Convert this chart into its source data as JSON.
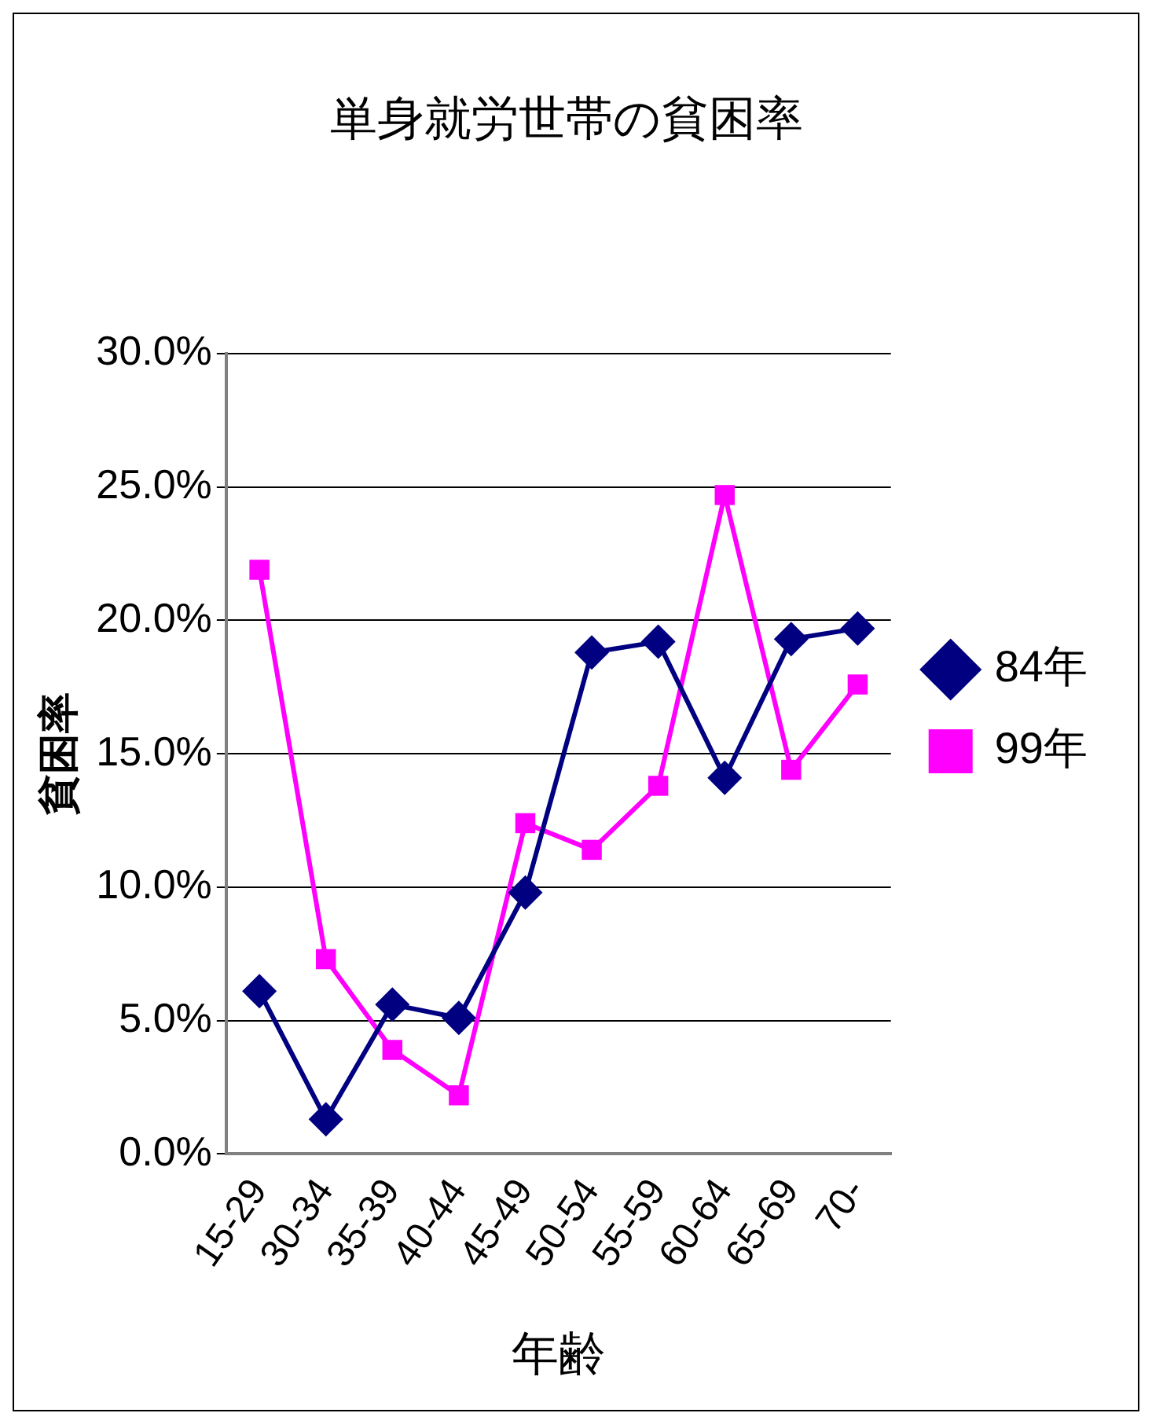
{
  "chart_data": {
    "type": "line",
    "title": "単身就労世帯の貧困率",
    "xlabel": "年齢",
    "ylabel": "貧困率",
    "categories": [
      "15-29",
      "30-34",
      "35-39",
      "40-44",
      "45-49",
      "50-54",
      "55-59",
      "60-64",
      "65-69",
      "70-"
    ],
    "series": [
      {
        "name": "84年",
        "color": "#000080",
        "marker": "diamond",
        "values": [
          6.1,
          1.3,
          5.6,
          5.1,
          9.8,
          18.8,
          19.2,
          14.1,
          19.3,
          19.7
        ]
      },
      {
        "name": "99年",
        "color": "#ff00ff",
        "marker": "square",
        "values": [
          21.9,
          7.3,
          3.9,
          2.2,
          12.4,
          11.4,
          13.8,
          24.7,
          14.4,
          17.6
        ]
      }
    ],
    "ylim": [
      0,
      30
    ],
    "yticks": [
      {
        "value": 0,
        "label": "0.0%"
      },
      {
        "value": 5,
        "label": "5.0%"
      },
      {
        "value": 10,
        "label": "10.0%"
      },
      {
        "value": 15,
        "label": "15.0%"
      },
      {
        "value": 20,
        "label": "20.0%"
      },
      {
        "value": 25,
        "label": "25.0%"
      },
      {
        "value": 30,
        "label": "30.0%"
      }
    ],
    "grid": "y",
    "legend": "right",
    "line_style": "solid"
  }
}
